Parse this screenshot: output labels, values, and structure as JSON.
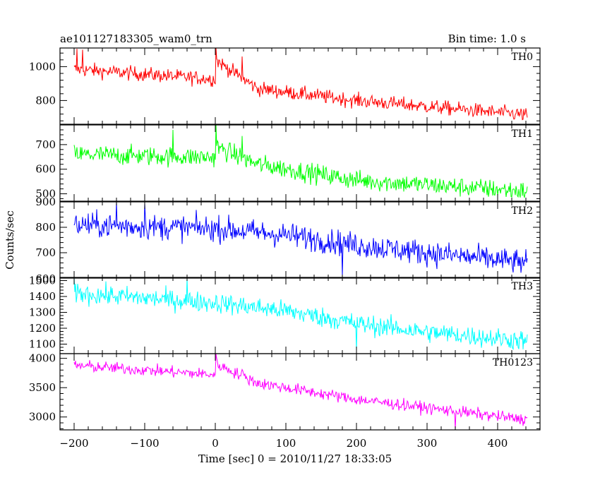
{
  "chart_data": {
    "type": "line",
    "title_left": "ae101127183305_wam0_trn",
    "title_right": "Bin time: 1.0 s",
    "xlabel": "Time [sec] 0 = 2010/11/27 18:33:05",
    "ylabel": "Counts/sec",
    "xlim": [
      -220,
      460
    ],
    "x_ticks": [
      -200,
      -100,
      0,
      100,
      200,
      300,
      400
    ],
    "x_tick_labels": [
      "−200",
      "−100",
      "0",
      "100",
      "200",
      "300",
      "400"
    ],
    "x_range": [
      -200,
      442
    ],
    "series": [
      {
        "name": "TH0",
        "color": "#ff0000",
        "ylim": [
          660,
          1110
        ],
        "y_ticks": [
          800,
          1000
        ],
        "y_tick_labels": [
          "800",
          "1000"
        ],
        "trend": [
          [
            -200,
            985
          ],
          [
            0,
            925
          ],
          [
            2,
            1035
          ],
          [
            60,
            870
          ],
          [
            200,
            800
          ],
          [
            442,
            715
          ]
        ],
        "noise": 30,
        "spikes": [
          [
            -196,
            1105
          ],
          [
            -188,
            1100
          ],
          [
            1,
            1110
          ],
          [
            38,
            1060
          ]
        ]
      },
      {
        "name": "TH1",
        "color": "#00ff00",
        "ylim": [
          470,
          780
        ],
        "y_ticks": [
          500,
          600,
          700
        ],
        "y_tick_labels": [
          "500",
          "600",
          "700"
        ],
        "trend": [
          [
            -200,
            660
          ],
          [
            0,
            648
          ],
          [
            2,
            690
          ],
          [
            60,
            620
          ],
          [
            200,
            555
          ],
          [
            442,
            510
          ]
        ],
        "noise": 28,
        "spikes": [
          [
            1,
            780
          ],
          [
            -60,
            760
          ],
          [
            38,
            735
          ]
        ]
      },
      {
        "name": "TH2",
        "color": "#0000ff",
        "ylim": [
          600,
          900
        ],
        "y_ticks": [
          700,
          800,
          900
        ],
        "y_tick_labels": [
          "700",
          "800",
          "900"
        ],
        "bottom_label": "600",
        "trend": [
          [
            -200,
            810
          ],
          [
            0,
            795
          ],
          [
            100,
            770
          ],
          [
            200,
            730
          ],
          [
            300,
            700
          ],
          [
            442,
            660
          ]
        ],
        "noise": 35,
        "spikes": [
          [
            -140,
            900
          ],
          [
            -100,
            895
          ],
          [
            180,
            610
          ]
        ]
      },
      {
        "name": "TH3",
        "color": "#00ffff",
        "ylim": [
          1040,
          1520
        ],
        "y_ticks": [
          1100,
          1200,
          1300,
          1400,
          1500
        ],
        "y_tick_labels": [
          "1100",
          "1200",
          "1300",
          "1400",
          "1500"
        ],
        "trend": [
          [
            -200,
            1420
          ],
          [
            0,
            1360
          ],
          [
            100,
            1310
          ],
          [
            200,
            1230
          ],
          [
            300,
            1175
          ],
          [
            442,
            1120
          ]
        ],
        "noise": 45,
        "spikes": [
          [
            -200,
            1520
          ],
          [
            -40,
            1515
          ],
          [
            200,
            1060
          ]
        ]
      },
      {
        "name": "TH0123",
        "color": "#ff00ff",
        "ylim": [
          2780,
          4080
        ],
        "y_ticks": [
          3000,
          3500,
          4000
        ],
        "y_tick_labels": [
          "3000",
          "3500",
          "4000"
        ],
        "trend": [
          [
            -200,
            3880
          ],
          [
            0,
            3720
          ],
          [
            2,
            3900
          ],
          [
            60,
            3580
          ],
          [
            200,
            3300
          ],
          [
            442,
            2950
          ]
        ],
        "noise": 70,
        "spikes": [
          [
            1,
            4080
          ],
          [
            38,
            3810
          ],
          [
            340,
            2790
          ]
        ]
      }
    ]
  }
}
